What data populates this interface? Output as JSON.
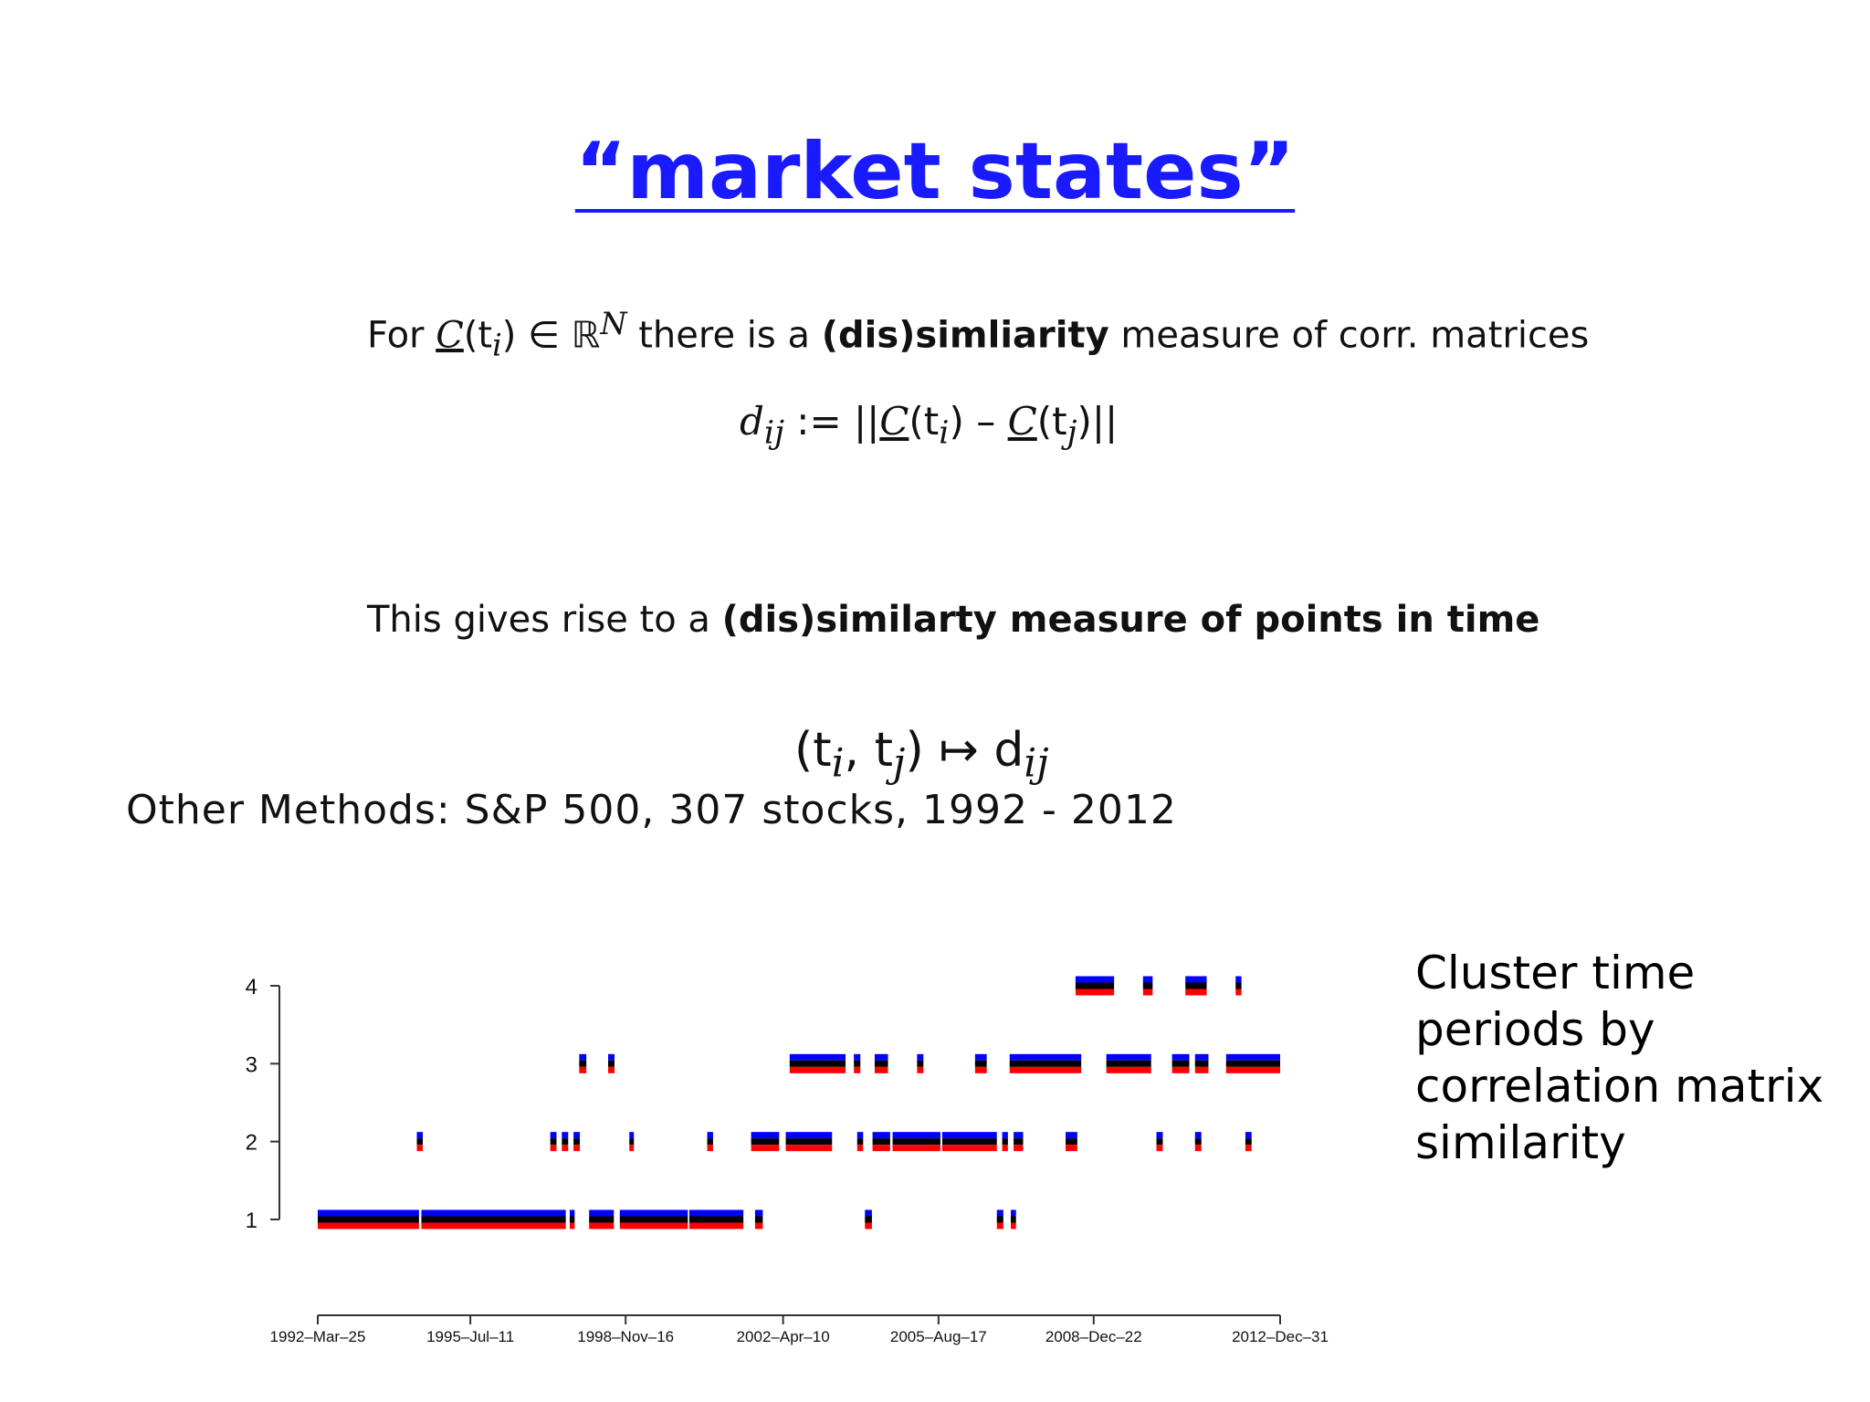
{
  "slide": {
    "title": "“market states”",
    "line1": {
      "prefix": "For ",
      "c": "C",
      "ti": "(t",
      "ti_sub": "i",
      "ti_end": ")",
      "in": " ∈ ℝ",
      "sup": "N",
      "mid": " there is a ",
      "bold": "(dis)simliarity",
      "suffix": " measure of corr. matrices"
    },
    "line2": {
      "d": "d",
      "d_sub": "ij",
      "assign": " := ||",
      "c1": "C",
      "t1": "(t",
      "t1_sub": "i",
      "t1_end": ") – ",
      "c2": "C",
      "t2": "(t",
      "t2_sub": "j",
      "t2_end": ")||"
    },
    "line3": {
      "prefix": "This gives rise to a ",
      "bold": "(dis)similarty measure of points in time"
    },
    "line4": {
      "open": "(t",
      "s1": "i",
      "comma": ", t",
      "s2": "j",
      "close": ") ↦ d",
      "s3": "ij"
    },
    "other_methods": "Other Methods:  S&P 500, 307 stocks, 1992 - 2012",
    "caption": "Cluster time periods by correlation matrix similarity"
  },
  "chart_data": {
    "type": "scatter",
    "title": "",
    "xlabel": "",
    "ylabel": "",
    "x_tick_labels": [
      "1992–Mar–25",
      "1995–Jul–11",
      "1998–Nov–16",
      "2002–Apr–10",
      "2005–Aug–17",
      "2008–Dec–22",
      "2012–Dec–31"
    ],
    "x_tick_dates": [
      "1992-03-25",
      "1995-07-11",
      "1998-11-16",
      "2002-04-10",
      "2005-08-17",
      "2008-12-22",
      "2012-12-31"
    ],
    "y_ticks": [
      1,
      2,
      3,
      4
    ],
    "xlim": [
      "1992-03-25",
      "2012-12-31"
    ],
    "ylim": [
      0.5,
      4.5
    ],
    "grid": false,
    "legend": "none",
    "series": [
      {
        "color": "#0000ff",
        "y_offset": 0.1
      },
      {
        "color": "#000000",
        "y_offset": 0.0
      },
      {
        "color": "#ff0000",
        "y_offset": -0.1
      }
    ],
    "segments": [
      {
        "cluster": 1,
        "start": "1992-03-25",
        "end": "1994-06-01"
      },
      {
        "cluster": 1,
        "start": "1994-06-20",
        "end": "1997-08-01"
      },
      {
        "cluster": 1,
        "start": "1997-09-01",
        "end": "1997-10-10"
      },
      {
        "cluster": 1,
        "start": "1998-02-01",
        "end": "1998-08-15"
      },
      {
        "cluster": 1,
        "start": "1998-10-01",
        "end": "2000-03-20"
      },
      {
        "cluster": 1,
        "start": "2000-04-01",
        "end": "2001-06-01"
      },
      {
        "cluster": 1,
        "start": "2001-09-01",
        "end": "2001-11-01"
      },
      {
        "cluster": 1,
        "start": "2004-01-15",
        "end": "2004-03-10"
      },
      {
        "cluster": 1,
        "start": "2006-11-20",
        "end": "2007-01-10"
      },
      {
        "cluster": 1,
        "start": "2007-03-10",
        "end": "2007-04-20"
      },
      {
        "cluster": 2,
        "start": "1994-05-15",
        "end": "1994-07-01"
      },
      {
        "cluster": 2,
        "start": "1997-04-01",
        "end": "1997-05-20"
      },
      {
        "cluster": 2,
        "start": "1997-07-01",
        "end": "1997-08-20"
      },
      {
        "cluster": 2,
        "start": "1997-10-01",
        "end": "1997-11-20"
      },
      {
        "cluster": 2,
        "start": "1998-12-15",
        "end": "1999-01-20"
      },
      {
        "cluster": 2,
        "start": "2000-08-20",
        "end": "2000-10-05"
      },
      {
        "cluster": 2,
        "start": "2001-08-01",
        "end": "2002-03-10"
      },
      {
        "cluster": 2,
        "start": "2002-05-01",
        "end": "2003-05-01"
      },
      {
        "cluster": 2,
        "start": "2003-11-15",
        "end": "2004-01-01"
      },
      {
        "cluster": 2,
        "start": "2004-03-15",
        "end": "2004-08-01"
      },
      {
        "cluster": 2,
        "start": "2004-08-20",
        "end": "2005-09-01"
      },
      {
        "cluster": 2,
        "start": "2005-09-15",
        "end": "2006-11-20"
      },
      {
        "cluster": 2,
        "start": "2007-01-01",
        "end": "2007-02-15"
      },
      {
        "cluster": 2,
        "start": "2007-04-01",
        "end": "2007-06-15"
      },
      {
        "cluster": 2,
        "start": "2008-05-15",
        "end": "2008-08-15"
      },
      {
        "cluster": 2,
        "start": "2010-05-01",
        "end": "2010-06-20"
      },
      {
        "cluster": 2,
        "start": "2011-03-01",
        "end": "2011-04-20"
      },
      {
        "cluster": 2,
        "start": "2012-04-01",
        "end": "2012-05-20"
      },
      {
        "cluster": 3,
        "start": "1997-11-15",
        "end": "1998-01-10"
      },
      {
        "cluster": 3,
        "start": "1998-07-01",
        "end": "1998-08-20"
      },
      {
        "cluster": 3,
        "start": "2002-06-01",
        "end": "2003-08-15"
      },
      {
        "cluster": 3,
        "start": "2003-10-20",
        "end": "2003-12-10"
      },
      {
        "cluster": 3,
        "start": "2004-04-01",
        "end": "2004-07-15"
      },
      {
        "cluster": 3,
        "start": "2005-03-01",
        "end": "2005-04-20"
      },
      {
        "cluster": 3,
        "start": "2006-06-01",
        "end": "2006-09-01"
      },
      {
        "cluster": 3,
        "start": "2007-03-01",
        "end": "2008-09-15"
      },
      {
        "cluster": 3,
        "start": "2009-04-01",
        "end": "2010-03-20"
      },
      {
        "cluster": 3,
        "start": "2010-09-01",
        "end": "2011-01-15"
      },
      {
        "cluster": 3,
        "start": "2011-03-01",
        "end": "2011-06-15"
      },
      {
        "cluster": 3,
        "start": "2011-11-01",
        "end": "2012-12-31"
      },
      {
        "cluster": 4,
        "start": "2008-08-01",
        "end": "2009-06-01"
      },
      {
        "cluster": 4,
        "start": "2010-01-15",
        "end": "2010-04-01"
      },
      {
        "cluster": 4,
        "start": "2010-12-15",
        "end": "2011-06-01"
      },
      {
        "cluster": 4,
        "start": "2012-01-15",
        "end": "2012-03-01"
      }
    ]
  }
}
